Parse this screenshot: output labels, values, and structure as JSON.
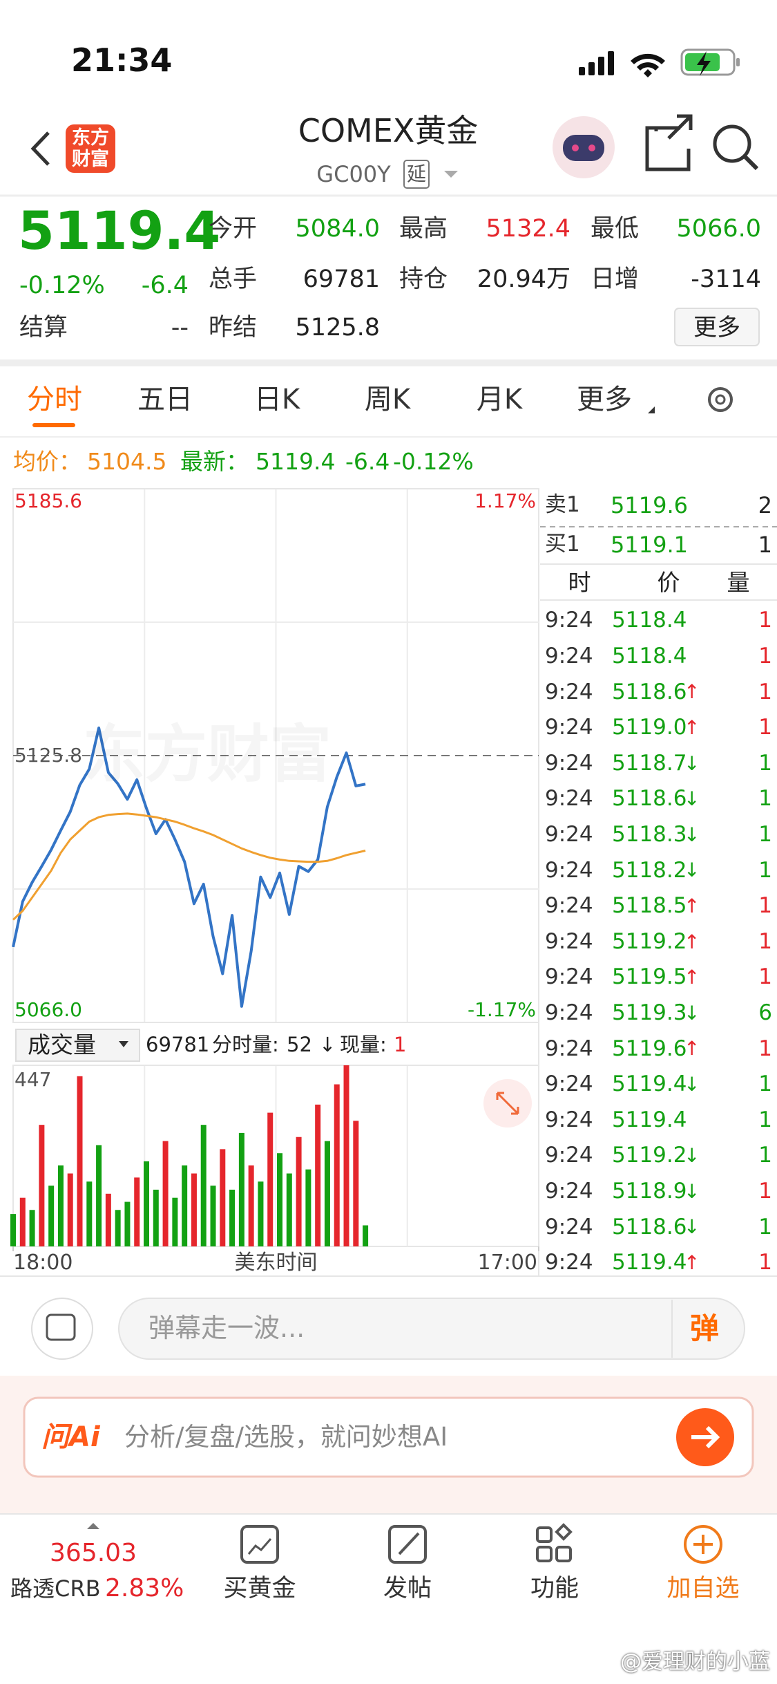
{
  "status_bar": {
    "time": "21:34"
  },
  "header": {
    "logo": "东方财富",
    "title": "COMEX黄金",
    "code": "GC00Y",
    "tag": "延"
  },
  "quote": {
    "price": "5119.4",
    "change_pct": "-0.12%",
    "change": "-6.4",
    "settle_label": "结算",
    "settle_value": "--",
    "stats": [
      {
        "label": "今开",
        "value": "5084.0",
        "tone": "down"
      },
      {
        "label": "最高",
        "value": "5132.4",
        "tone": "up"
      },
      {
        "label": "最低",
        "value": "5066.0",
        "tone": "down"
      },
      {
        "label": "总手",
        "value": "69781",
        "tone": "flat"
      },
      {
        "label": "持仓",
        "value": "20.94万",
        "tone": "flat"
      },
      {
        "label": "日增",
        "value": "-3114",
        "tone": "flat"
      },
      {
        "label": "昨结",
        "value": "5125.8",
        "tone": "flat"
      }
    ],
    "more": "更多"
  },
  "tabs": {
    "items": [
      "分时",
      "五日",
      "日K",
      "周K",
      "月K",
      "更多"
    ],
    "active": 0
  },
  "info": {
    "avg_label": "均价：",
    "avg": "5104.5",
    "last_label": "最新：",
    "last": "5119.4",
    "change": "-6.4",
    "change_pct": "-0.12%"
  },
  "chart_data": [
    {
      "type": "line",
      "watermark": "东方财富",
      "x_label": "美东时间",
      "x": [
        0,
        25,
        50,
        75,
        100,
        125,
        150,
        175,
        200,
        225,
        250,
        275,
        300,
        325,
        350,
        375,
        400,
        425,
        450,
        475,
        500,
        525,
        550,
        575,
        600,
        625,
        650,
        675,
        700,
        725,
        750,
        775,
        800,
        825,
        850,
        875,
        900,
        925
      ],
      "xlim": [
        0,
        1380
      ],
      "xticks": [
        {
          "value": 0,
          "label": "18:00"
        },
        {
          "value": 1380,
          "label": "17:00"
        }
      ],
      "ylim": [
        5066,
        5185.6
      ],
      "yticks": [
        {
          "value": 5066,
          "label": "5066.0"
        },
        5125.8,
        5185.6
      ],
      "y2lim": [
        -1.17,
        1.17
      ],
      "y2ticks": [
        {
          "value": -1.17,
          "label": "-1.17%"
        },
        {
          "value": 1.17,
          "label": "1.17%"
        }
      ],
      "grid": true,
      "series": [
        {
          "color": "#3374c6",
          "values": [
            5082.9,
            5093.1,
            5097.4,
            5101.0,
            5104.7,
            5109.0,
            5113.2,
            5119.2,
            5122.8,
            5132.0,
            5122.0,
            5119.5,
            5116.0,
            5120.4,
            5114.0,
            5108.3,
            5111.5,
            5107.0,
            5102.0,
            5092.6,
            5097.0,
            5085.3,
            5076.9,
            5090.0,
            5069.6,
            5082.0,
            5098.6,
            5094.0,
            5099.5,
            5090.2,
            5101.0,
            5099.8,
            5102.5,
            5114.3,
            5121.0,
            5126.4,
            5119.0,
            5119.4
          ]
        },
        {
          "color": "#f0a030",
          "values": [
            5089,
            5091,
            5094,
            5097,
            5100,
            5104,
            5107,
            5109,
            5111,
            5112,
            5112.5,
            5112.7,
            5112.8,
            5112.6,
            5112.3,
            5112.0,
            5111.5,
            5111.0,
            5110.3,
            5109.5,
            5108.8,
            5108.0,
            5107.0,
            5106.0,
            5105.0,
            5104.2,
            5103.5,
            5102.9,
            5102.5,
            5102.2,
            5102.1,
            5102.0,
            5102.0,
            5102.2,
            5102.8,
            5103.5,
            5104.0,
            5104.5
          ]
        }
      ]
    },
    {
      "type": "bar",
      "x": [
        0,
        25,
        50,
        75,
        100,
        125,
        150,
        175,
        200,
        225,
        250,
        275,
        300,
        325,
        350,
        375,
        400,
        425,
        450,
        475,
        500,
        525,
        550,
        575,
        600,
        625,
        650,
        675,
        700,
        725,
        750,
        775,
        800,
        825,
        850,
        875,
        900,
        925
      ],
      "xlim": [
        0,
        1380
      ],
      "ylim": [
        0,
        447
      ],
      "yticks": [
        447
      ],
      "values": [
        80,
        120,
        90,
        300,
        150,
        200,
        180,
        420,
        160,
        250,
        130,
        90,
        110,
        170,
        210,
        140,
        260,
        120,
        200,
        180,
        300,
        150,
        240,
        140,
        280,
        200,
        160,
        330,
        230,
        180,
        270,
        190,
        350,
        260,
        400,
        447,
        310,
        52
      ],
      "colors": [
        "#13a113",
        "#e5262c",
        "#13a113",
        "#e5262c",
        "#13a113",
        "#13a113",
        "#e5262c",
        "#e5262c",
        "#13a113",
        "#13a113",
        "#e5262c",
        "#13a113",
        "#13a113",
        "#e5262c",
        "#13a113",
        "#13a113",
        "#e5262c",
        "#13a113",
        "#13a113",
        "#e5262c",
        "#13a113",
        "#13a113",
        "#e5262c",
        "#13a113",
        "#13a113",
        "#e5262c",
        "#13a113",
        "#e5262c",
        "#13a113",
        "#13a113",
        "#e5262c",
        "#13a113",
        "#e5262c",
        "#13a113",
        "#e5262c",
        "#e5262c",
        "#e5262c",
        "#13a113"
      ]
    }
  ],
  "volume_panel": {
    "label": "成交量",
    "total": "69781",
    "minute_label": "分时量:",
    "minute": "52",
    "arrow": "↓",
    "current_label": "现量:",
    "current": "1"
  },
  "order_book": {
    "ask_label": "卖1",
    "ask": "5119.6",
    "ask_vol": "2",
    "bid_label": "买1",
    "bid": "5119.1",
    "bid_vol": "1",
    "head": [
      "时",
      "价",
      "量"
    ],
    "rows": [
      {
        "time": "9:24",
        "price": "5118.4",
        "vol": "1",
        "side": "up"
      },
      {
        "time": "9:24",
        "price": "5118.4",
        "vol": "1",
        "side": "up"
      },
      {
        "time": "9:24",
        "price": "5118.6",
        "arrow": "↑",
        "vol": "1",
        "side": "up"
      },
      {
        "time": "9:24",
        "price": "5119.0",
        "arrow": "↑",
        "vol": "1",
        "side": "up"
      },
      {
        "time": "9:24",
        "price": "5118.7",
        "arrow": "↓",
        "vol": "1",
        "side": "down"
      },
      {
        "time": "9:24",
        "price": "5118.6",
        "arrow": "↓",
        "vol": "1",
        "side": "down"
      },
      {
        "time": "9:24",
        "price": "5118.3",
        "arrow": "↓",
        "vol": "1",
        "side": "down"
      },
      {
        "time": "9:24",
        "price": "5118.2",
        "arrow": "↓",
        "vol": "1",
        "side": "down"
      },
      {
        "time": "9:24",
        "price": "5118.5",
        "arrow": "↑",
        "vol": "1",
        "side": "up"
      },
      {
        "time": "9:24",
        "price": "5119.2",
        "arrow": "↑",
        "vol": "1",
        "side": "up"
      },
      {
        "time": "9:24",
        "price": "5119.5",
        "arrow": "↑",
        "vol": "1",
        "side": "up"
      },
      {
        "time": "9:24",
        "price": "5119.3",
        "arrow": "↓",
        "vol": "6",
        "side": "down"
      },
      {
        "time": "9:24",
        "price": "5119.6",
        "arrow": "↑",
        "vol": "1",
        "side": "up"
      },
      {
        "time": "9:24",
        "price": "5119.4",
        "arrow": "↓",
        "vol": "1",
        "side": "down"
      },
      {
        "time": "9:24",
        "price": "5119.4",
        "vol": "1",
        "side": "down"
      },
      {
        "time": "9:24",
        "price": "5119.2",
        "arrow": "↓",
        "vol": "1",
        "side": "down"
      },
      {
        "time": "9:24",
        "price": "5118.9",
        "arrow": "↓",
        "vol": "1",
        "side": "up"
      },
      {
        "time": "9:24",
        "price": "5118.6",
        "arrow": "↓",
        "vol": "1",
        "side": "down"
      },
      {
        "time": "9:24",
        "price": "5119.4",
        "arrow": "↑",
        "vol": "1",
        "side": "up"
      }
    ]
  },
  "comment": {
    "placeholder": "弹幕走一波...",
    "button": "弹"
  },
  "ai": {
    "logo": "问Ai",
    "placeholder": "分析/复盘/选股，就问妙想AI"
  },
  "nav": {
    "index_value": "365.03",
    "index_name": "路透CRB",
    "index_pct": "2.83%",
    "items": [
      "买黄金",
      "发帖",
      "功能",
      "加自选"
    ]
  },
  "watermark": "@爱理财的小蓝"
}
